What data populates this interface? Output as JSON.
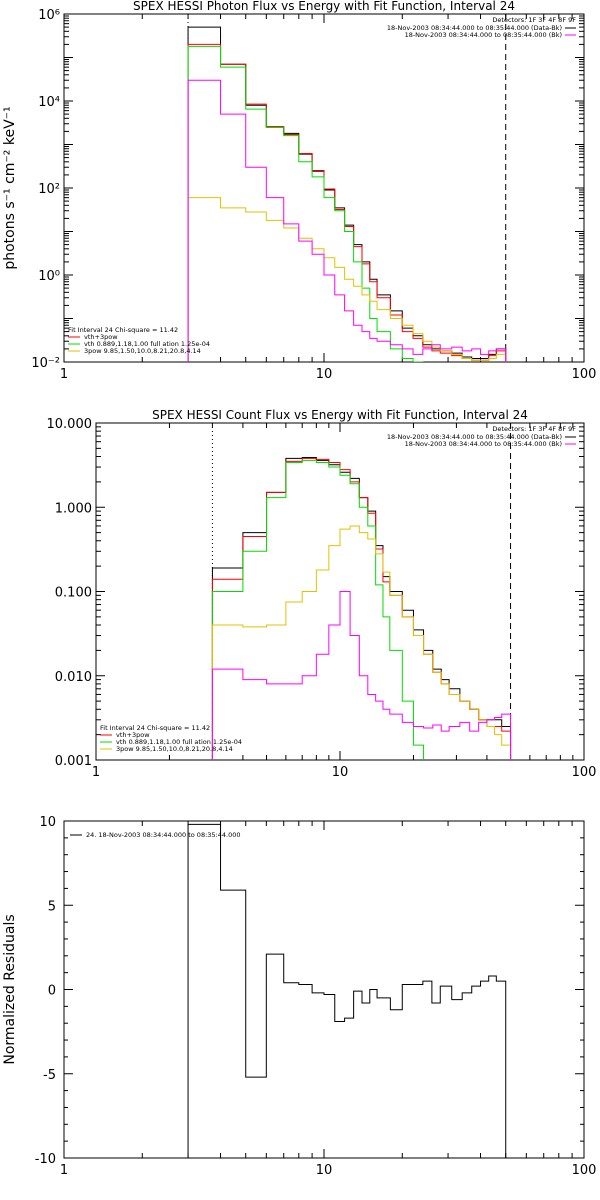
{
  "chart_data": [
    {
      "type": "line",
      "title": "SPEX HESSI Photon Flux vs Energy with Fit Function, Interval 24",
      "xlabel": "",
      "ylabel": "photons s⁻¹ cm⁻² keV⁻¹",
      "xscale": "log",
      "yscale": "log",
      "xlim": [
        1,
        100
      ],
      "ylim": [
        0.01,
        1000000
      ],
      "xtick_labels": [
        "1",
        "10",
        "100"
      ],
      "ytick_labels": [
        "10⁻²",
        "10⁰",
        "10²",
        "10⁴",
        "10⁶"
      ],
      "detectors_label": "Detectors: 1F 3F 4F 8F 9F",
      "legend_right": [
        {
          "text": "18-Nov-2003 08:34:44.000 to 08:35:44.000 (Data-Bk)",
          "color": "#000000"
        },
        {
          "text": "18-Nov-2003 08:34:44.000 to 08:35:44.000 (Bk)",
          "color": "#ff00ff"
        }
      ],
      "fit_header": "Fit Interval 24   Chi-square = 11.42",
      "legend_left": [
        {
          "text": "vth+3pow",
          "color": "#ff0000"
        },
        {
          "text": "vth 0.889,1.18,1.00  full ation 1.25e-04",
          "color": "#00dd00"
        },
        {
          "text": "3pow 9.85,1.50,10.0,8.21,20.8,4.14",
          "color": "#e6c000"
        }
      ],
      "bin_edges": [
        3,
        4,
        5,
        6,
        7,
        8,
        9,
        10,
        11,
        12,
        13,
        14,
        15,
        16,
        18,
        20,
        22,
        24,
        26,
        28,
        31,
        34,
        37,
        40,
        43,
        46,
        50
      ],
      "series": [
        {
          "color": "#000000",
          "values": [
            500000,
            70000,
            8000,
            2500,
            1800,
            600,
            250,
            90,
            35,
            14,
            5,
            2,
            0.8,
            0.35,
            0.15,
            0.06,
            0.04,
            0.025,
            0.02,
            0.018,
            0.016,
            0.013,
            0.012,
            0.012,
            0.015,
            0.02
          ]
        },
        {
          "color": "#ff0000",
          "values": [
            200000,
            70000,
            8500,
            2600,
            1700,
            620,
            240,
            95,
            32,
            13,
            4.5,
            1.8,
            0.7,
            0.3,
            0.12,
            0.05,
            0.035,
            0.022,
            0.018,
            0.016,
            0.014,
            0.012,
            0.011,
            0.011,
            0.014,
            0.018
          ]
        },
        {
          "color": "#00dd00",
          "values": [
            180000,
            60000,
            6500,
            2500,
            1600,
            400,
            180,
            60,
            30,
            10,
            2,
            0.5,
            0.1,
            0.05,
            0.02,
            0.012,
            0.008
          ]
        },
        {
          "color": "#e6c000",
          "values": [
            60,
            35,
            28,
            18,
            12,
            7,
            4,
            2.5,
            1.5,
            0.8,
            0.55,
            0.35,
            0.25,
            0.16,
            0.1,
            0.07,
            0.045,
            0.03,
            0.022,
            0.018,
            0.015,
            0.012,
            0.011,
            0.011,
            0.012,
            0.015
          ]
        },
        {
          "color": "#ff00ff",
          "values": [
            30000,
            5000,
            300,
            60,
            15,
            6,
            3,
            1,
            0.35,
            0.15,
            0.07,
            0.05,
            0.035,
            0.03,
            0.025,
            0.02,
            0.015,
            0.02,
            0.025,
            0.02,
            0.022,
            0.018,
            0.02,
            0.015,
            0.018,
            0.02
          ]
        }
      ],
      "vlines": [
        {
          "x": 3,
          "style": "dotted"
        },
        {
          "x": 50,
          "style": "dashed"
        }
      ]
    },
    {
      "type": "line",
      "title": "SPEX HESSI Count Flux vs Energy with Fit Function, Interval 24",
      "xlabel": "",
      "ylabel": "",
      "xscale": "log",
      "yscale": "log",
      "xlim": [
        1,
        100
      ],
      "ylim": [
        0.001,
        10
      ],
      "xtick_labels": [
        "1",
        "10",
        "100"
      ],
      "ytick_labels": [
        "0.001",
        "0.010",
        "0.100",
        "1.000",
        "10.000"
      ],
      "detectors_label": "Detectors: 1F 3F 4F 8F 9F",
      "legend_right": [
        {
          "text": "18-Nov-2003 08:34:44.000 to 08:35:44.000 (Data-Bk)",
          "color": "#000000"
        },
        {
          "text": "18-Nov-2003 08:34:44.000 to 08:35:44.000 (Bk)",
          "color": "#ff00ff"
        }
      ],
      "fit_header": "Fit Interval 24   Chi-square = 11.42",
      "legend_left": [
        {
          "text": "vth+3pow",
          "color": "#ff0000"
        },
        {
          "text": "vth 0.889,1.18,1.00  full ation 1.25e-04",
          "color": "#00dd00"
        },
        {
          "text": "3pow 9.85,1.50,10.0,8.21,20.8,4.14",
          "color": "#e6c000"
        }
      ],
      "bin_edges": [
        3,
        4,
        5,
        6,
        7,
        8,
        9,
        10,
        11,
        12,
        13,
        14,
        15,
        16,
        18,
        20,
        22,
        24,
        26,
        28,
        31,
        34,
        37,
        40,
        43,
        46,
        50
      ],
      "series": [
        {
          "color": "#000000",
          "values": [
            0.19,
            0.5,
            1.5,
            3.8,
            3.9,
            3.6,
            3.2,
            2.6,
            2.2,
            1.3,
            0.9,
            0.35,
            0.15,
            0.1,
            0.06,
            0.035,
            0.02,
            0.012,
            0.009,
            0.007,
            0.005,
            0.004,
            0.003,
            0.003,
            0.003,
            0.0025
          ]
        },
        {
          "color": "#ff0000",
          "values": [
            0.14,
            0.45,
            1.5,
            3.5,
            3.8,
            3.7,
            3.4,
            2.8,
            2.0,
            1.3,
            0.85,
            0.32,
            0.13,
            0.09,
            0.05,
            0.03,
            0.018,
            0.011,
            0.008,
            0.006,
            0.005,
            0.004,
            0.003,
            0.0025,
            0.0025,
            0.0022
          ]
        },
        {
          "color": "#00dd00",
          "values": [
            0.1,
            0.3,
            1.3,
            3.4,
            3.6,
            3.4,
            3.0,
            2.4,
            1.9,
            1.0,
            0.6,
            0.12,
            0.05,
            0.02,
            0.005,
            0.0015
          ]
        },
        {
          "color": "#e6c000",
          "values": [
            0.04,
            0.038,
            0.04,
            0.075,
            0.1,
            0.18,
            0.35,
            0.55,
            0.6,
            0.5,
            0.42,
            0.28,
            0.17,
            0.09,
            0.05,
            0.03,
            0.018,
            0.011,
            0.008,
            0.006,
            0.005,
            0.004,
            0.003,
            0.0025,
            0.002,
            0.0015
          ]
        },
        {
          "color": "#ff00ff",
          "values": [
            0.012,
            0.009,
            0.008,
            0.008,
            0.01,
            0.018,
            0.04,
            0.1,
            0.03,
            0.01,
            0.006,
            0.005,
            0.004,
            0.0035,
            0.0028,
            0.0025,
            0.0024,
            0.0026,
            0.0022,
            0.0025,
            0.0028,
            0.0022,
            0.0028,
            0.003,
            0.0032,
            0.0035
          ]
        }
      ],
      "vlines": [
        {
          "x": 3,
          "style": "dotted"
        },
        {
          "x": 50,
          "style": "dashed"
        }
      ]
    },
    {
      "type": "line",
      "title": "",
      "xlabel": "",
      "ylabel": "Normalized Residuals",
      "xscale": "log",
      "yscale": "linear",
      "xlim": [
        1,
        100
      ],
      "ylim": [
        -10,
        10
      ],
      "xtick_labels": [
        "1",
        "10",
        "100"
      ],
      "ytick_labels": [
        "-10",
        "-5",
        "0",
        "5",
        "10"
      ],
      "legend_left": [
        {
          "text": "24. 18-Nov-2003 08:34:44.000 to 08:35:44.000",
          "color": "#000000"
        }
      ],
      "bin_edges": [
        3,
        4,
        5,
        6,
        7,
        8,
        9,
        10,
        11,
        12,
        13,
        14,
        15,
        16,
        18,
        20,
        22,
        24,
        26,
        28,
        31,
        34,
        37,
        40,
        43,
        46,
        50
      ],
      "series": [
        {
          "color": "#000000",
          "values": [
            9.8,
            5.9,
            -5.2,
            2.1,
            0.4,
            0.3,
            -0.2,
            -0.3,
            -1.9,
            -1.7,
            -0.1,
            -0.8,
            0.0,
            -0.5,
            -1.2,
            0.3,
            0.3,
            0.5,
            -0.8,
            0.2,
            -0.6,
            -0.2,
            0.2,
            0.5,
            0.8,
            0.5
          ]
        }
      ]
    }
  ]
}
